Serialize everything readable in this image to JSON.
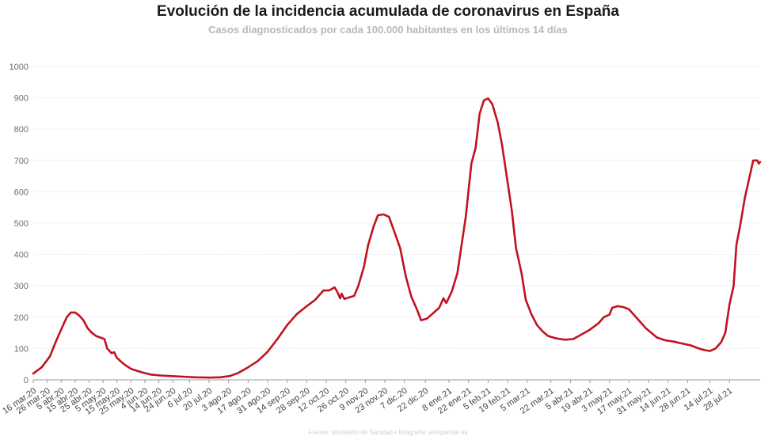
{
  "chart_data": {
    "type": "line",
    "title": "Evolución de la incidencia acumulada de coronavirus en España",
    "subtitle": "Casos diagnosticados por cada 100.000 habitantes en los últimos 14 días",
    "source": "Fuente: Ministerio de Sanidad • Infografía: elimparcial.es",
    "xlabel": "",
    "ylabel": "",
    "ylim": [
      0,
      1000
    ],
    "yticks": [
      0,
      100,
      200,
      300,
      400,
      500,
      600,
      700,
      800,
      900,
      1000
    ],
    "grid": true,
    "legend": "none",
    "line_color": "#c1121f",
    "x_tick_labels": [
      "16 mar.20",
      "26 mar.20",
      "5 abr.20",
      "15 abr.20",
      "25 abr.20",
      "5 may.20",
      "15 may.20",
      "25 may.20",
      "4 jun.20",
      "14 jun.20",
      "24 jun.20",
      "6 jul.20",
      "20 jul.20",
      "3 ago.20",
      "17 ago.20",
      "31 ago.20",
      "14 sep.20",
      "28 sep.20",
      "12 oct.20",
      "26 oct.20",
      "9 nov.20",
      "23 nov.20",
      "7 dic.20",
      "22 dic.20",
      "8 ene.21",
      "22 ene.21",
      "5 feb.21",
      "19 feb.21",
      "5 mar.21",
      "22 mar.21",
      "5 abr.21",
      "19 abr.21",
      "3 may.21",
      "17 may.21",
      "31 may.21",
      "14 jun.21",
      "28 jun.21",
      "14 jul.21",
      "28 jul.21"
    ],
    "series": [
      {
        "values": [
          [
            "2020-03-16",
            20
          ],
          [
            "2020-03-22",
            40
          ],
          [
            "2020-03-28",
            75
          ],
          [
            "2020-04-01",
            120
          ],
          [
            "2020-04-05",
            160
          ],
          [
            "2020-04-09",
            200
          ],
          [
            "2020-04-12",
            215
          ],
          [
            "2020-04-15",
            215
          ],
          [
            "2020-04-18",
            205
          ],
          [
            "2020-04-21",
            190
          ],
          [
            "2020-04-24",
            165
          ],
          [
            "2020-04-27",
            150
          ],
          [
            "2020-04-30",
            140
          ],
          [
            "2020-05-03",
            135
          ],
          [
            "2020-05-06",
            130
          ],
          [
            "2020-05-08",
            100
          ],
          [
            "2020-05-11",
            85
          ],
          [
            "2020-05-13",
            88
          ],
          [
            "2020-05-15",
            70
          ],
          [
            "2020-05-20",
            50
          ],
          [
            "2020-05-25",
            35
          ],
          [
            "2020-06-01",
            25
          ],
          [
            "2020-06-08",
            17
          ],
          [
            "2020-06-15",
            14
          ],
          [
            "2020-06-22",
            12
          ],
          [
            "2020-07-01",
            10
          ],
          [
            "2020-07-10",
            8
          ],
          [
            "2020-07-20",
            7
          ],
          [
            "2020-07-28",
            8
          ],
          [
            "2020-08-04",
            12
          ],
          [
            "2020-08-10",
            22
          ],
          [
            "2020-08-17",
            40
          ],
          [
            "2020-08-24",
            60
          ],
          [
            "2020-08-31",
            90
          ],
          [
            "2020-09-07",
            130
          ],
          [
            "2020-09-14",
            175
          ],
          [
            "2020-09-21",
            210
          ],
          [
            "2020-09-28",
            235
          ],
          [
            "2020-10-04",
            255
          ],
          [
            "2020-10-10",
            285
          ],
          [
            "2020-10-14",
            285
          ],
          [
            "2020-10-18",
            295
          ],
          [
            "2020-10-20",
            280
          ],
          [
            "2020-10-22",
            260
          ],
          [
            "2020-10-23",
            275
          ],
          [
            "2020-10-25",
            258
          ],
          [
            "2020-11-01",
            268
          ],
          [
            "2020-11-04",
            300
          ],
          [
            "2020-11-08",
            360
          ],
          [
            "2020-11-11",
            430
          ],
          [
            "2020-11-15",
            490
          ],
          [
            "2020-11-18",
            525
          ],
          [
            "2020-11-22",
            528
          ],
          [
            "2020-11-26",
            520
          ],
          [
            "2020-11-30",
            470
          ],
          [
            "2020-12-04",
            420
          ],
          [
            "2020-12-08",
            330
          ],
          [
            "2020-12-12",
            265
          ],
          [
            "2020-12-16",
            225
          ],
          [
            "2020-12-19",
            190
          ],
          [
            "2020-12-23",
            195
          ],
          [
            "2020-12-27",
            210
          ],
          [
            "2021-01-01",
            230
          ],
          [
            "2021-01-04",
            260
          ],
          [
            "2021-01-06",
            245
          ],
          [
            "2021-01-10",
            282
          ],
          [
            "2021-01-14",
            340
          ],
          [
            "2021-01-17",
            430
          ],
          [
            "2021-01-20",
            520
          ],
          [
            "2021-01-24",
            690
          ],
          [
            "2021-01-27",
            740
          ],
          [
            "2021-01-30",
            850
          ],
          [
            "2021-02-02",
            892
          ],
          [
            "2021-02-05",
            898
          ],
          [
            "2021-02-08",
            880
          ],
          [
            "2021-02-12",
            820
          ],
          [
            "2021-02-15",
            750
          ],
          [
            "2021-02-18",
            660
          ],
          [
            "2021-02-22",
            540
          ],
          [
            "2021-02-25",
            420
          ],
          [
            "2021-03-01",
            340
          ],
          [
            "2021-03-04",
            255
          ],
          [
            "2021-03-08",
            210
          ],
          [
            "2021-03-12",
            175
          ],
          [
            "2021-03-16",
            155
          ],
          [
            "2021-03-20",
            140
          ],
          [
            "2021-03-26",
            132
          ],
          [
            "2021-04-01",
            128
          ],
          [
            "2021-04-07",
            130
          ],
          [
            "2021-04-13",
            145
          ],
          [
            "2021-04-19",
            160
          ],
          [
            "2021-04-25",
            180
          ],
          [
            "2021-04-29",
            200
          ],
          [
            "2021-05-03",
            208
          ],
          [
            "2021-05-05",
            230
          ],
          [
            "2021-05-09",
            235
          ],
          [
            "2021-05-13",
            232
          ],
          [
            "2021-05-17",
            225
          ],
          [
            "2021-05-21",
            205
          ],
          [
            "2021-05-25",
            185
          ],
          [
            "2021-05-29",
            165
          ],
          [
            "2021-06-02",
            150
          ],
          [
            "2021-06-06",
            135
          ],
          [
            "2021-06-12",
            126
          ],
          [
            "2021-06-18",
            122
          ],
          [
            "2021-06-24",
            116
          ],
          [
            "2021-06-30",
            110
          ],
          [
            "2021-07-06",
            100
          ],
          [
            "2021-07-10",
            95
          ],
          [
            "2021-07-14",
            92
          ],
          [
            "2021-07-18",
            100
          ],
          [
            "2021-07-22",
            120
          ],
          [
            "2021-07-25",
            150
          ],
          [
            "2021-07-28",
            240
          ],
          [
            "2021-07-31",
            300
          ],
          [
            "2021-08-02",
            430
          ],
          [
            "2021-08-05",
            500
          ],
          [
            "2021-08-08",
            580
          ],
          [
            "2021-08-11",
            640
          ],
          [
            "2021-08-14",
            700
          ],
          [
            "2021-08-17",
            700
          ],
          [
            "2021-08-18",
            690
          ],
          [
            "2021-08-19",
            695
          ]
        ]
      }
    ]
  }
}
